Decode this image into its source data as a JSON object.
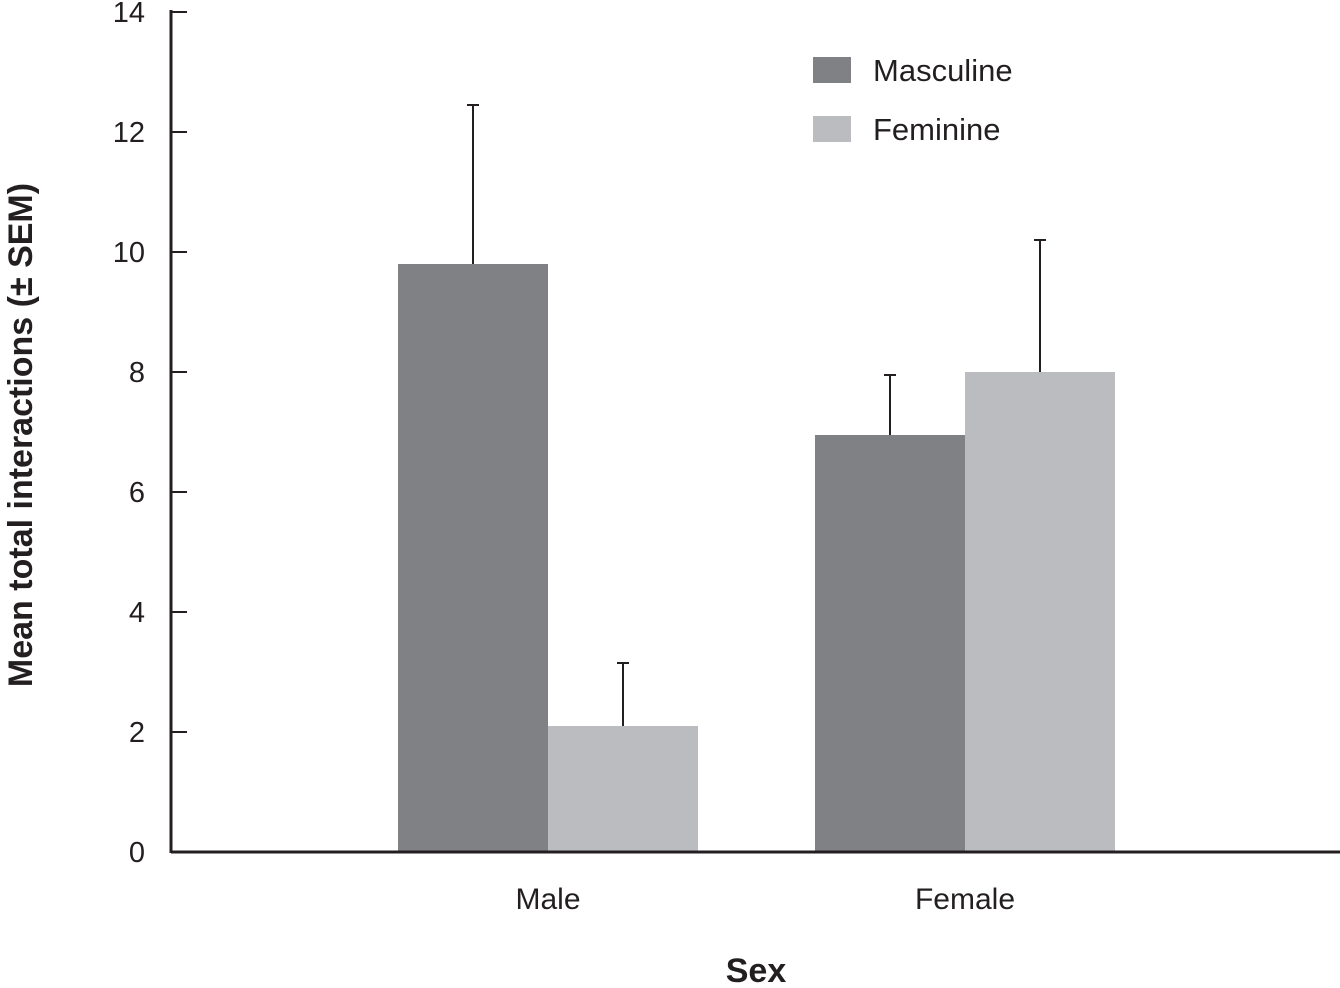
{
  "chart_data": {
    "type": "bar",
    "xlabel": "Sex",
    "ylabel": "Mean total interactions (± SEM)",
    "categories": [
      "Male",
      "Female"
    ],
    "series": [
      {
        "name": "Masculine",
        "values": [
          9.8,
          6.95
        ],
        "errors": [
          2.65,
          1.0
        ],
        "color": "#808184"
      },
      {
        "name": "Feminine",
        "values": [
          2.1,
          8.0
        ],
        "errors": [
          1.05,
          2.2
        ],
        "color": "#bbbcbf"
      }
    ],
    "ylim": [
      0,
      14
    ],
    "yticks": [
      0,
      2,
      4,
      6,
      8,
      10,
      12,
      14
    ],
    "grid": false,
    "legend_position": "top-right"
  }
}
